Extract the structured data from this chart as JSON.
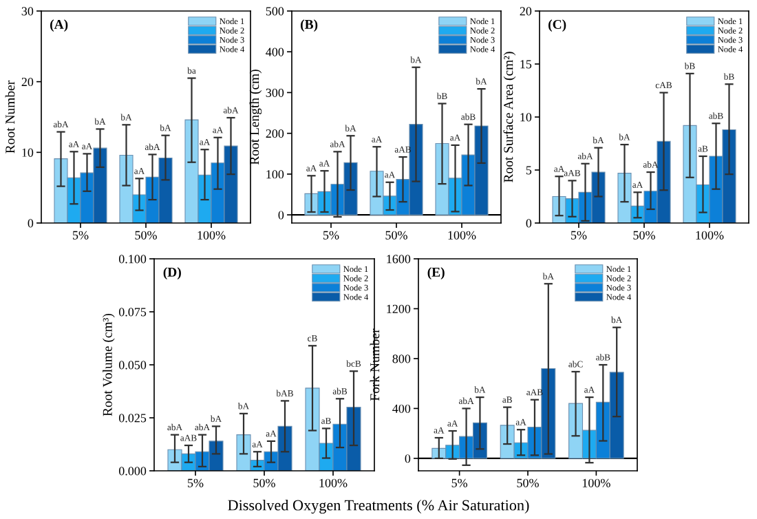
{
  "chart_data": [
    {
      "type": "bar",
      "title": "(A)",
      "ylabel": "Root Number",
      "categories": [
        "5%",
        "50%",
        "100%"
      ],
      "ylim": [
        0,
        30
      ],
      "yticks": [
        0,
        10,
        20,
        30
      ],
      "legend": "top right",
      "grid": false,
      "series": [
        {
          "name": "Node 1",
          "color": "#8fd4f5",
          "values": [
            9.1,
            9.6,
            14.6
          ],
          "errors": [
            [
              5.2,
              12.9
            ],
            [
              5.3,
              13.9
            ],
            [
              8.6,
              20.5
            ]
          ]
        },
        {
          "name": "Node 2",
          "color": "#1eaaf0",
          "values": [
            6.4,
            4.0,
            6.8
          ],
          "errors": [
            [
              2.7,
              10.1
            ],
            [
              1.8,
              6.3
            ],
            [
              3.3,
              10.4
            ]
          ]
        },
        {
          "name": "Node 3",
          "color": "#0c80d8",
          "values": [
            7.1,
            6.5,
            8.5
          ],
          "errors": [
            [
              4.5,
              9.8
            ],
            [
              3.3,
              9.7
            ],
            [
              4.8,
              12.1
            ]
          ]
        },
        {
          "name": "Node 4",
          "color": "#0a5ca8",
          "values": [
            10.6,
            9.2,
            10.9
          ],
          "errors": [
            [
              7.9,
              13.3
            ],
            [
              6.1,
              12.4
            ],
            [
              6.9,
              14.9
            ]
          ]
        }
      ],
      "annotations": [
        "abA",
        "aA",
        "aA",
        "bA",
        "bA",
        "aA",
        "abA",
        "bA",
        "ba",
        "aA",
        "aA",
        "abA"
      ]
    },
    {
      "type": "bar",
      "title": "(B)",
      "ylabel": "Root Length (cm)",
      "categories": [
        "5%",
        "50%",
        "100%"
      ],
      "ylim": [
        -20,
        500
      ],
      "yticks": [
        0,
        100,
        200,
        300,
        400,
        500
      ],
      "legend": "top right",
      "grid": false,
      "ref_lines": [
        {
          "axis": "y",
          "value": 0,
          "color": "#000000"
        }
      ],
      "series": [
        {
          "name": "Node 1",
          "color": "#8fd4f5",
          "values": [
            52,
            107,
            175
          ],
          "errors": [
            [
              7,
              96
            ],
            [
              45,
              167
            ],
            [
              76,
              273
            ]
          ]
        },
        {
          "name": "Node 2",
          "color": "#1eaaf0",
          "values": [
            57,
            46,
            90
          ],
          "errors": [
            [
              7,
              108
            ],
            [
              12,
              80
            ],
            [
              8,
              171
            ]
          ]
        },
        {
          "name": "Node 3",
          "color": "#0c80d8",
          "values": [
            75,
            87,
            147
          ],
          "errors": [
            [
              -5,
              155
            ],
            [
              32,
              142
            ],
            [
              72,
              222
            ]
          ]
        },
        {
          "name": "Node 4",
          "color": "#0a5ca8",
          "values": [
            128,
            222,
            218
          ],
          "errors": [
            [
              61,
              194
            ],
            [
              82,
              362
            ],
            [
              127,
              309
            ]
          ]
        }
      ],
      "annotations": [
        "aA",
        "aA",
        "abA",
        "bA",
        "aA",
        "aA",
        "aAB",
        "bA",
        "bB",
        "aA",
        "abB",
        "bA"
      ]
    },
    {
      "type": "bar",
      "title": "(C)",
      "ylabel": "Root Surface Area (cm²)",
      "categories": [
        "5%",
        "50%",
        "100%"
      ],
      "ylim": [
        0,
        20
      ],
      "yticks": [
        0,
        5,
        10,
        15,
        20
      ],
      "legend": "top right",
      "grid": false,
      "series": [
        {
          "name": "Node 1",
          "color": "#8fd4f5",
          "values": [
            2.5,
            4.7,
            9.2
          ],
          "errors": [
            [
              0.7,
              4.4
            ],
            [
              2.0,
              7.4
            ],
            [
              4.3,
              14.1
            ]
          ]
        },
        {
          "name": "Node 2",
          "color": "#1eaaf0",
          "values": [
            2.3,
            1.6,
            3.6
          ],
          "errors": [
            [
              0.6,
              4.0
            ],
            [
              0.5,
              2.9
            ],
            [
              1.0,
              6.3
            ]
          ]
        },
        {
          "name": "Node 3",
          "color": "#0c80d8",
          "values": [
            2.9,
            3.0,
            6.3
          ],
          "errors": [
            [
              0.2,
              5.6
            ],
            [
              1.3,
              4.8
            ],
            [
              3.2,
              9.4
            ]
          ]
        },
        {
          "name": "Node 4",
          "color": "#0a5ca8",
          "values": [
            4.8,
            7.7,
            8.8
          ],
          "errors": [
            [
              2.5,
              7.1
            ],
            [
              3.1,
              12.3
            ],
            [
              4.6,
              13.1
            ]
          ]
        }
      ],
      "annotations": [
        "aA",
        "aAB",
        "abA",
        "bA",
        "bA",
        "aA",
        "abA",
        "cAB",
        "bB",
        "aB",
        "abB",
        "bB"
      ]
    },
    {
      "type": "bar",
      "title": "(D)",
      "ylabel": "Root Volume (cm³)",
      "xlabel": "Dissolved Oxygen Treatments (% Air Saturation)",
      "categories": [
        "5%",
        "50%",
        "100%"
      ],
      "ylim": [
        0,
        0.1
      ],
      "yticks": [
        {
          "value": 0,
          "label": "0.000"
        },
        {
          "value": 0.025,
          "label": "0.025"
        },
        {
          "value": 0.05,
          "label": "0.050"
        },
        {
          "value": 0.075,
          "label": "0.075"
        },
        {
          "value": 0.1,
          "label": "0.100"
        }
      ],
      "legend": "top right",
      "grid": false,
      "series": [
        {
          "name": "Node 1",
          "color": "#8fd4f5",
          "values": [
            0.01,
            0.017,
            0.039
          ],
          "errors": [
            [
              0.004,
              0.017
            ],
            [
              0.008,
              0.027
            ],
            [
              0.019,
              0.059
            ]
          ]
        },
        {
          "name": "Node 2",
          "color": "#1eaaf0",
          "values": [
            0.008,
            0.005,
            0.013
          ],
          "errors": [
            [
              0.004,
              0.012
            ],
            [
              0.002,
              0.009
            ],
            [
              0.006,
              0.02
            ]
          ]
        },
        {
          "name": "Node 3",
          "color": "#0c80d8",
          "values": [
            0.009,
            0.009,
            0.022
          ],
          "errors": [
            [
              0.002,
              0.017
            ],
            [
              0.004,
              0.014
            ],
            [
              0.011,
              0.034
            ]
          ]
        },
        {
          "name": "Node 4",
          "color": "#0a5ca8",
          "values": [
            0.014,
            0.021,
            0.03
          ],
          "errors": [
            [
              0.008,
              0.021
            ],
            [
              0.009,
              0.033
            ],
            [
              0.012,
              0.047
            ]
          ]
        }
      ],
      "annotations": [
        "abA",
        "aAB",
        "abA",
        "bA",
        "bA",
        "aA",
        "aA",
        "bAB",
        "cB",
        "aB",
        "abB",
        "bcB"
      ]
    },
    {
      "type": "bar",
      "title": "(E)",
      "ylabel": "Fork Number",
      "categories": [
        "5%",
        "50%",
        "100%"
      ],
      "ylim": [
        -100,
        1600
      ],
      "yticks": [
        0,
        400,
        800,
        1200,
        1600
      ],
      "legend": "top right",
      "grid": false,
      "ref_lines": [
        {
          "axis": "y",
          "value": 0,
          "color": "#000000"
        }
      ],
      "series": [
        {
          "name": "Node 1",
          "color": "#8fd4f5",
          "values": [
            80,
            265,
            440
          ],
          "errors": [
            [
              0,
              165
            ],
            [
              115,
              410
            ],
            [
              180,
              695
            ]
          ]
        },
        {
          "name": "Node 2",
          "color": "#1eaaf0",
          "values": [
            105,
            125,
            225
          ],
          "errors": [
            [
              -5,
              220
            ],
            [
              25,
              230
            ],
            [
              -35,
              490
            ]
          ]
        },
        {
          "name": "Node 3",
          "color": "#0c80d8",
          "values": [
            175,
            250,
            450
          ],
          "errors": [
            [
              -55,
              400
            ],
            [
              25,
              470
            ],
            [
              140,
              750
            ]
          ]
        },
        {
          "name": "Node 4",
          "color": "#0a5ca8",
          "values": [
            285,
            720,
            690
          ],
          "errors": [
            [
              75,
              490
            ],
            [
              35,
              1400
            ],
            [
              335,
              1050
            ]
          ]
        }
      ],
      "annotations": [
        "aA",
        "aA",
        "abA",
        "bA",
        "aB",
        "aA",
        "aAB",
        "bA",
        "abC",
        "aA",
        "abB",
        "bA"
      ]
    }
  ]
}
